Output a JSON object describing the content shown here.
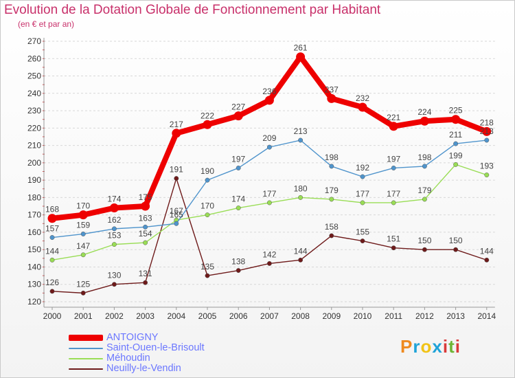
{
  "title": "Evolution de la Dotation Globale de Fonctionnement par Habitant",
  "subtitle": "(en € et par an)",
  "logo": {
    "text": "Proxiti",
    "colors": [
      "#ee8a1f",
      "#1fa3d8",
      "#f1c317",
      "#1fa3d8",
      "#d93a3a",
      "#6fb536",
      "#d93a3a"
    ]
  },
  "chart_data": {
    "type": "line",
    "title": "Evolution de la Dotation Globale de Fonctionnement par Habitant",
    "subtitle": "(en € et par an)",
    "x": [
      "2000",
      "2001",
      "2002",
      "2003",
      "2004",
      "2005",
      "2006",
      "2007",
      "2008",
      "2009",
      "2010",
      "2011",
      "2012",
      "2013",
      "2014"
    ],
    "y_ticks": [
      120,
      130,
      140,
      150,
      160,
      170,
      180,
      190,
      200,
      210,
      220,
      230,
      240,
      250,
      260,
      270
    ],
    "ylim": [
      120,
      270
    ],
    "grid": "horizontal-dashed",
    "legend_position": "bottom-left",
    "series": [
      {
        "name": "ANTOIGNY",
        "color": "#ee0000",
        "emphasis": "thick",
        "values": [
          168,
          170,
          174,
          175,
          217,
          222,
          227,
          236,
          261,
          237,
          232,
          221,
          224,
          225,
          218
        ]
      },
      {
        "name": "Saint-Ouen-le-Brisoult",
        "color": "#4f94cc",
        "values": [
          157,
          159,
          162,
          163,
          165,
          190,
          197,
          209,
          213,
          198,
          192,
          197,
          198,
          211,
          213
        ]
      },
      {
        "name": "Méhoudin",
        "color": "#99dd55",
        "values": [
          144,
          147,
          153,
          154,
          167,
          170,
          174,
          177,
          180,
          179,
          177,
          177,
          179,
          199,
          193
        ]
      },
      {
        "name": "Neuilly-le-Vendin",
        "color": "#6e1a1a",
        "values": [
          126,
          125,
          130,
          131,
          191,
          135,
          138,
          142,
          144,
          158,
          155,
          151,
          150,
          150,
          144
        ]
      }
    ]
  }
}
